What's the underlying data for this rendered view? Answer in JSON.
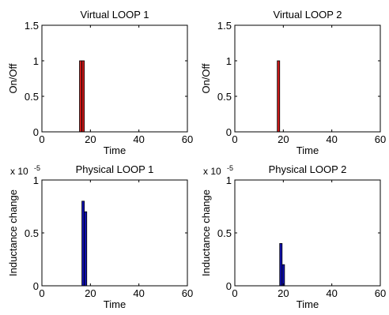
{
  "figure": {
    "background": "#ffffff",
    "axes_color": "#000000"
  },
  "chart_data": [
    {
      "type": "bar",
      "title": "Virtual LOOP 1",
      "xlabel": "Time",
      "ylabel": "On/Off",
      "xlim": [
        0,
        60
      ],
      "ylim": [
        0,
        1.5
      ],
      "xticks": [
        "0",
        "20",
        "40",
        "60"
      ],
      "yticks": [
        "0",
        "0.5",
        "1",
        "1.5"
      ],
      "exponent": "",
      "bar_color": "#cc1a1a",
      "bar_width": 1,
      "x": [
        16,
        17
      ],
      "values": [
        1,
        1
      ]
    },
    {
      "type": "bar",
      "title": "Virtual LOOP 2",
      "xlabel": "Time",
      "ylabel": "On/Off",
      "xlim": [
        0,
        60
      ],
      "ylim": [
        0,
        1.5
      ],
      "xticks": [
        "0",
        "20",
        "40",
        "60"
      ],
      "yticks": [
        "0",
        "0.5",
        "1",
        "1.5"
      ],
      "exponent": "",
      "bar_color": "#cc1a1a",
      "bar_width": 1,
      "x": [
        18
      ],
      "values": [
        1
      ]
    },
    {
      "type": "bar",
      "title": "Physical LOOP 1",
      "xlabel": "Time",
      "ylabel": "Inductance change",
      "xlim": [
        0,
        60
      ],
      "ylim": [
        0,
        1
      ],
      "xticks": [
        "0",
        "20",
        "40",
        "60"
      ],
      "yticks": [
        "0",
        "0.5",
        "1"
      ],
      "exponent": "x 10",
      "exponent_power": "-5",
      "bar_color": "#1010b0",
      "bar_width": 1,
      "x": [
        17,
        18
      ],
      "values": [
        0.8,
        0.7
      ]
    },
    {
      "type": "bar",
      "title": "Physical LOOP 2",
      "xlabel": "Time",
      "ylabel": "Inductance change",
      "xlim": [
        0,
        60
      ],
      "ylim": [
        0,
        1
      ],
      "xticks": [
        "0",
        "20",
        "40",
        "60"
      ],
      "yticks": [
        "0",
        "0.5",
        "1"
      ],
      "exponent": "x 10",
      "exponent_power": "-5",
      "bar_color": "#1010b0",
      "bar_width": 1,
      "x": [
        19,
        20
      ],
      "values": [
        0.4,
        0.2
      ]
    }
  ]
}
